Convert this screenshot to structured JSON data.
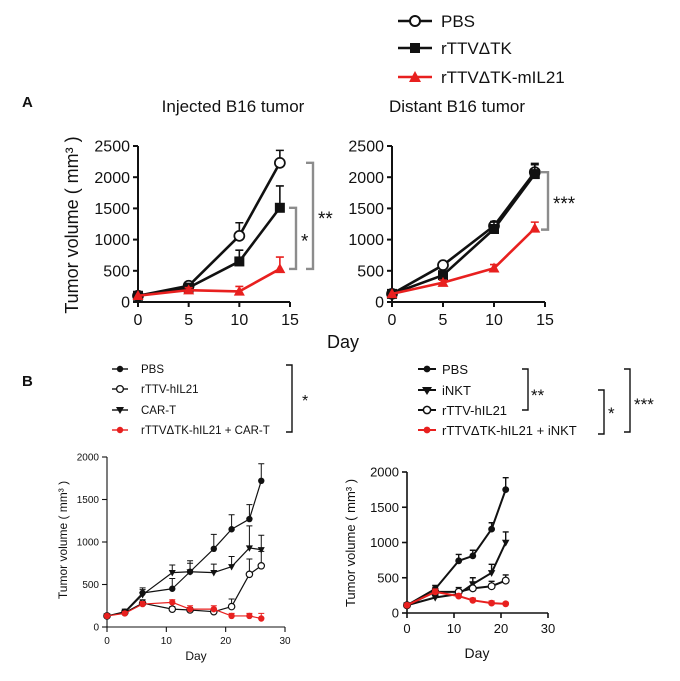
{
  "figure": {
    "panel_a_label": "A",
    "panel_b_label": "B",
    "top_legend": [
      {
        "label": "PBS",
        "marker": "open-circle",
        "color": "#111111"
      },
      {
        "label": "rTTVΔTK",
        "marker": "filled-square",
        "color": "#111111"
      },
      {
        "label": "rTTVΔTK-mIL21",
        "marker": "filled-triangle",
        "color": "#e8201f"
      }
    ],
    "panel_a_shared_xlabel": "Day",
    "b1_legend": [
      {
        "label": "PBS",
        "marker": "filled-circle",
        "color": "#111111"
      },
      {
        "label": "rTTV-hIL21",
        "marker": "open-circle",
        "color": "#111111"
      },
      {
        "label": "CAR-T",
        "marker": "down-triangle",
        "color": "#111111"
      },
      {
        "label": "rTTVΔTK-hIL21 + CAR-T",
        "marker": "filled-circle",
        "color": "#e8201f"
      }
    ],
    "b1_significance": "*",
    "b2_legend": [
      {
        "label": "PBS",
        "marker": "filled-circle",
        "color": "#111111"
      },
      {
        "label": "iNKT",
        "marker": "down-triangle",
        "color": "#111111"
      },
      {
        "label": "rTTV-hIL21",
        "marker": "open-circle",
        "color": "#111111"
      },
      {
        "label": "rTTVΔTK-hIL21 + iNKT",
        "marker": "filled-circle",
        "color": "#e8201f"
      }
    ],
    "b2_significance": [
      "**",
      "*",
      "***"
    ]
  },
  "chart_data": [
    {
      "id": "a-injected",
      "type": "line",
      "title": "Injected B16 tumor",
      "xlabel": "",
      "ylabel": "Tumor volume ( mm³ )",
      "xlim": [
        0,
        15
      ],
      "ylim": [
        0,
        2500
      ],
      "xticks": [
        0,
        5,
        10,
        15
      ],
      "yticks": [
        0,
        500,
        1000,
        1500,
        2000,
        2500
      ],
      "series": [
        {
          "name": "PBS",
          "marker": "open-circle",
          "color": "#111111",
          "x": [
            0,
            5,
            10,
            14
          ],
          "y": [
            100,
            260,
            1060,
            2230
          ],
          "err": [
            0,
            60,
            210,
            200
          ]
        },
        {
          "name": "rTTVΔTK",
          "marker": "filled-square",
          "color": "#111111",
          "x": [
            0,
            5,
            10,
            14
          ],
          "y": [
            100,
            230,
            650,
            1510
          ],
          "err": [
            0,
            50,
            180,
            350
          ]
        },
        {
          "name": "rTTVΔTK-mIL21",
          "marker": "filled-triangle",
          "color": "#e8201f",
          "x": [
            0,
            5,
            10,
            14
          ],
          "y": [
            100,
            190,
            170,
            530
          ],
          "err": [
            0,
            40,
            80,
            190
          ]
        }
      ],
      "brackets": [
        {
          "label": "*",
          "from": 1510,
          "to": 530
        },
        {
          "label": "**",
          "from": 2230,
          "to": 530
        }
      ]
    },
    {
      "id": "a-distant",
      "type": "line",
      "title": "Distant B16 tumor",
      "xlabel": "",
      "ylabel": "",
      "xlim": [
        0,
        15
      ],
      "ylim": [
        0,
        2500
      ],
      "xticks": [
        0,
        5,
        10,
        15
      ],
      "yticks": [
        0,
        500,
        1000,
        1500,
        2000,
        2500
      ],
      "series": [
        {
          "name": "PBS",
          "marker": "open-circle",
          "color": "#111111",
          "x": [
            0,
            5,
            10,
            14
          ],
          "y": [
            130,
            590,
            1220,
            2080
          ],
          "err": [
            0,
            40,
            70,
            120
          ]
        },
        {
          "name": "rTTVΔTK",
          "marker": "filled-square",
          "color": "#111111",
          "x": [
            0,
            5,
            10,
            14
          ],
          "y": [
            130,
            430,
            1170,
            2050
          ],
          "err": [
            0,
            60,
            110,
            170
          ]
        },
        {
          "name": "rTTVΔTK-mIL21",
          "marker": "filled-triangle",
          "color": "#e8201f",
          "x": [
            0,
            5,
            10,
            14
          ],
          "y": [
            130,
            310,
            540,
            1180
          ],
          "err": [
            0,
            40,
            60,
            100
          ]
        }
      ],
      "brackets": [
        {
          "label": "***",
          "from": 2080,
          "to": 1160
        }
      ]
    },
    {
      "id": "b-cart",
      "type": "line",
      "title": "",
      "xlabel": "Day",
      "ylabel": "Tumor volume ( mm³ )",
      "xlim": [
        0,
        30
      ],
      "ylim": [
        0,
        2000
      ],
      "xticks": [
        0,
        10,
        20,
        30
      ],
      "yticks": [
        0,
        500,
        1000,
        1500,
        2000
      ],
      "series": [
        {
          "name": "PBS",
          "marker": "filled-circle",
          "color": "#111111",
          "x": [
            0,
            3,
            6,
            11,
            14,
            18,
            21,
            24,
            26
          ],
          "y": [
            130,
            180,
            400,
            450,
            650,
            920,
            1150,
            1270,
            1720
          ],
          "err": [
            0,
            30,
            60,
            120,
            130,
            170,
            170,
            170,
            200
          ]
        },
        {
          "name": "rTTV-hIL21",
          "marker": "open-circle",
          "color": "#111111",
          "x": [
            0,
            3,
            6,
            11,
            14,
            18,
            21,
            24,
            26
          ],
          "y": [
            130,
            170,
            280,
            210,
            200,
            180,
            240,
            620,
            720
          ],
          "err": [
            0,
            20,
            40,
            30,
            30,
            30,
            90,
            180,
            170
          ]
        },
        {
          "name": "CAR-T",
          "marker": "down-triangle",
          "color": "#111111",
          "x": [
            0,
            3,
            6,
            11,
            14,
            18,
            21,
            24,
            26
          ],
          "y": [
            130,
            170,
            380,
            640,
            650,
            640,
            710,
            930,
            910
          ],
          "err": [
            0,
            30,
            60,
            90,
            100,
            100,
            120,
            260,
            170
          ]
        },
        {
          "name": "rTTVΔTK-hIL21 + CAR-T",
          "marker": "filled-circle",
          "color": "#e8201f",
          "x": [
            0,
            3,
            6,
            11,
            14,
            18,
            21,
            24,
            26
          ],
          "y": [
            130,
            160,
            270,
            290,
            210,
            210,
            130,
            130,
            100
          ],
          "err": [
            0,
            20,
            30,
            30,
            40,
            40,
            30,
            30,
            60
          ]
        }
      ]
    },
    {
      "id": "b-inkt",
      "type": "line",
      "title": "",
      "xlabel": "Day",
      "ylabel": "Tumor volume ( mm³ )",
      "xlim": [
        0,
        30
      ],
      "ylim": [
        0,
        2000
      ],
      "xticks": [
        0,
        10,
        20,
        30
      ],
      "yticks": [
        0,
        500,
        1000,
        1500,
        2000
      ],
      "series": [
        {
          "name": "PBS",
          "marker": "filled-circle",
          "color": "#111111",
          "x": [
            0,
            6,
            11,
            14,
            18,
            21
          ],
          "y": [
            110,
            340,
            740,
            810,
            1190,
            1750
          ],
          "err": [
            0,
            50,
            90,
            80,
            90,
            170
          ]
        },
        {
          "name": "iNKT",
          "marker": "down-triangle",
          "color": "#111111",
          "x": [
            0,
            6,
            11,
            14,
            18,
            21
          ],
          "y": [
            110,
            220,
            270,
            410,
            570,
            1000
          ],
          "err": [
            0,
            40,
            60,
            90,
            120,
            150
          ]
        },
        {
          "name": "rTTV-hIL21",
          "marker": "open-circle",
          "color": "#111111",
          "x": [
            0,
            6,
            11,
            14,
            18,
            21
          ],
          "y": [
            110,
            300,
            300,
            350,
            380,
            460
          ],
          "err": [
            0,
            40,
            60,
            90,
            70,
            80
          ]
        },
        {
          "name": "rTTVΔTK-hIL21 + iNKT",
          "marker": "filled-circle",
          "color": "#e8201f",
          "x": [
            0,
            6,
            11,
            14,
            18,
            21
          ],
          "y": [
            110,
            300,
            240,
            180,
            140,
            130
          ],
          "err": [
            0,
            40,
            30,
            30,
            30,
            20
          ]
        }
      ]
    }
  ]
}
